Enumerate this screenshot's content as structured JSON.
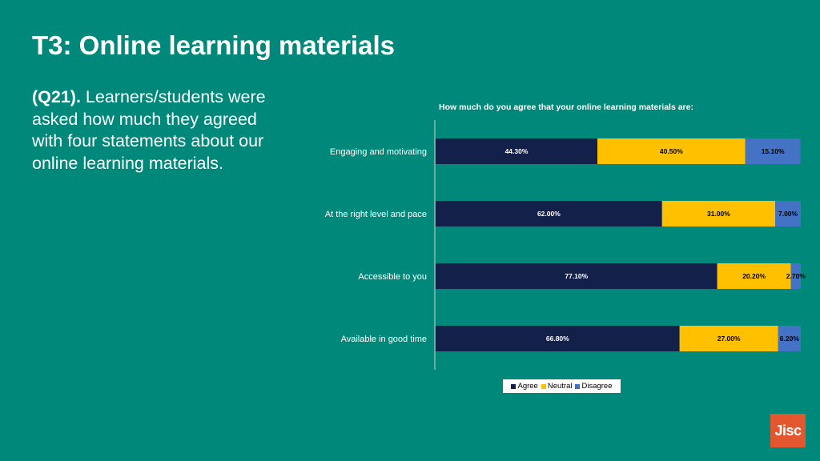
{
  "slide": {
    "title": "T3: Online learning materials",
    "intro_ref": "(Q21).",
    "intro_text": " Learners/students were asked how much they agreed with four statements about our online learning materials."
  },
  "logo": {
    "text": "Jisc",
    "color": "#E4572E"
  },
  "chart_data": {
    "type": "bar",
    "orientation": "horizontal",
    "stacked": true,
    "title": "How much do you agree that your online learning materials are:",
    "categories": [
      "Engaging and motivating",
      "At the right level and pace",
      "Accessible to you",
      "Available in good time"
    ],
    "series": [
      {
        "name": "Agree",
        "color": "#13214A",
        "values": [
          44.3,
          62.0,
          77.1,
          66.8
        ],
        "labels": [
          "44.30%",
          "62.00%",
          "77.10%",
          "66.80%"
        ]
      },
      {
        "name": "Neutral",
        "color": "#FFC000",
        "values": [
          40.5,
          31.0,
          20.2,
          27.0
        ],
        "labels": [
          "40.50%",
          "31.00%",
          "20.20%",
          "27.00%"
        ]
      },
      {
        "name": "Disagree",
        "color": "#4472C4",
        "values": [
          15.1,
          7.0,
          2.7,
          6.2
        ],
        "labels": [
          "15.10%",
          "7.00%",
          "2.70%",
          "6.20%"
        ]
      }
    ],
    "xlim": [
      0,
      100
    ],
    "grid": false,
    "legend": "bottom"
  }
}
